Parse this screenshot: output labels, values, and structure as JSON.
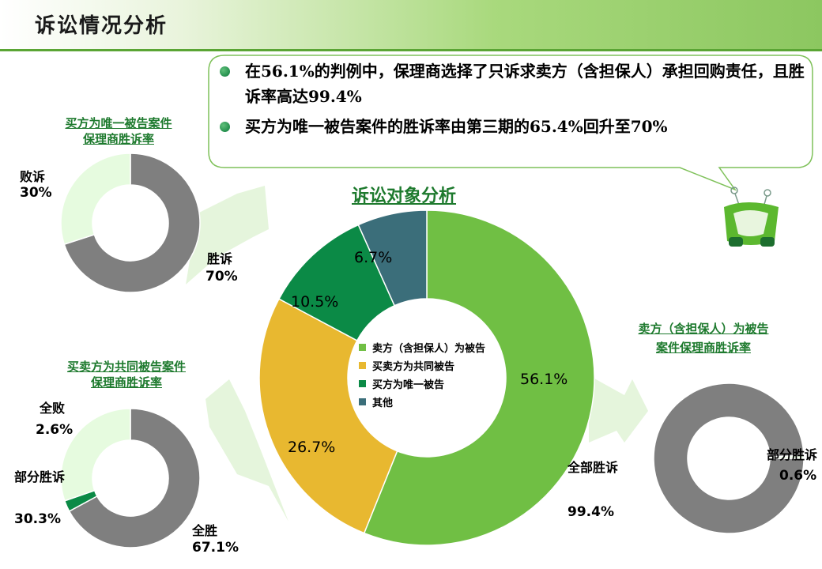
{
  "page_title": "诉讼情况分析",
  "bullets": [
    "在56.1%的判例中，保理商选择了只诉求卖方（含担保人）承担回购责任，且胜诉率高达99.4%",
    "买方为唯一被告案件的胜诉率由第三期的65.4%回升至70%"
  ],
  "colors": {
    "seller": "#70bf44",
    "both": "#e8b830",
    "buyer": "#0b8a46",
    "other": "#3b6e7a",
    "gray": "#7f7f7f",
    "light": "#e6fbdf",
    "title_green": "#1e7a2e"
  },
  "chart_data": [
    {
      "id": "main",
      "type": "pie",
      "title": "诉讼对象分析",
      "categories": [
        "卖方（含担保人）为被告",
        "买卖方为共同被告",
        "买方为唯一被告",
        "其他"
      ],
      "values": [
        56.1,
        26.7,
        10.5,
        6.7
      ],
      "labels": [
        "56.1%",
        "26.7%",
        "10.5%",
        "6.7%"
      ],
      "legend": "center"
    },
    {
      "id": "buyer",
      "type": "pie",
      "title_lines": [
        "买方为唯一被告案件",
        "保理商胜诉率"
      ],
      "categories": [
        "胜诉",
        "败诉"
      ],
      "values": [
        70,
        30
      ],
      "labels": [
        "70%",
        "30%"
      ]
    },
    {
      "id": "both",
      "type": "pie",
      "title_lines": [
        "买卖方为共同被告案件",
        "保理商胜诉率"
      ],
      "categories": [
        "全胜",
        "全败",
        "部分胜诉"
      ],
      "values": [
        67.1,
        2.6,
        30.3
      ],
      "labels": [
        "67.1%",
        "2.6%",
        "30.3%"
      ]
    },
    {
      "id": "seller",
      "type": "pie",
      "title_lines": [
        "卖方（含担保人）为被告",
        "案件保理商胜诉率"
      ],
      "categories": [
        "全部胜诉",
        "部分胜诉"
      ],
      "values": [
        99.4,
        0.6
      ],
      "labels": [
        "99.4%",
        "0.6%"
      ]
    }
  ]
}
